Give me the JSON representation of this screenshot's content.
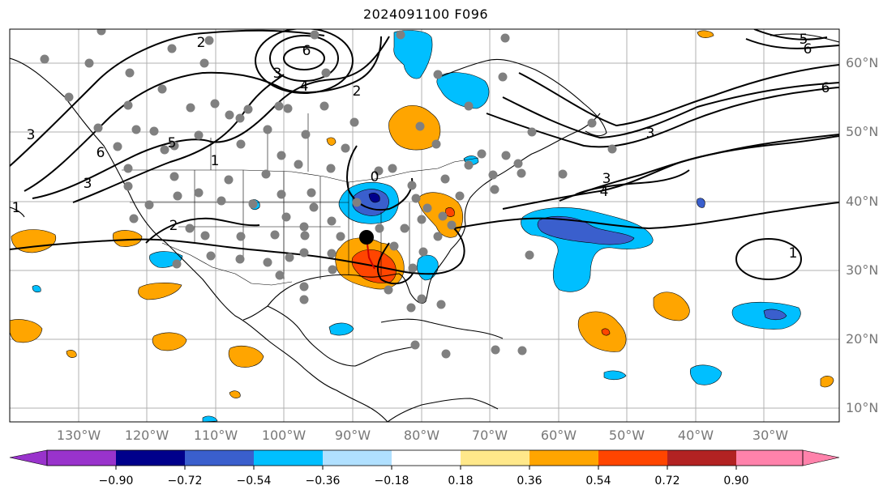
{
  "title": "2024091100 F096",
  "map": {
    "lat_labels": [
      "60°N",
      "50°N",
      "40°N",
      "30°N",
      "20°N",
      "10°N"
    ],
    "lon_labels": [
      "130°W",
      "120°W",
      "110°W",
      "100°W",
      "90°W",
      "80°W",
      "70°W",
      "60°W",
      "50°W",
      "40°W",
      "30°W"
    ],
    "contour_labels": [
      "6",
      "3",
      "4",
      "3",
      "5",
      "6",
      "3",
      "1",
      "2",
      "2",
      "0",
      "2",
      "3",
      "4",
      "6",
      "3",
      "6",
      "5",
      "1",
      "1"
    ]
  },
  "colorbar": {
    "tick_labels": [
      "−0.90",
      "−0.72",
      "−0.54",
      "−0.36",
      "−0.18",
      "0.18",
      "0.36",
      "0.54",
      "0.72",
      "0.90"
    ],
    "colors": [
      "#9933cc",
      "#00008b",
      "#3a5fcd",
      "#00bfff",
      "#b0e0ff",
      "#ffffff",
      "#ffe88a",
      "#ffa500",
      "#ff4500",
      "#b22222",
      "#ff82ab"
    ]
  },
  "marker": {
    "label": "storm center"
  }
}
